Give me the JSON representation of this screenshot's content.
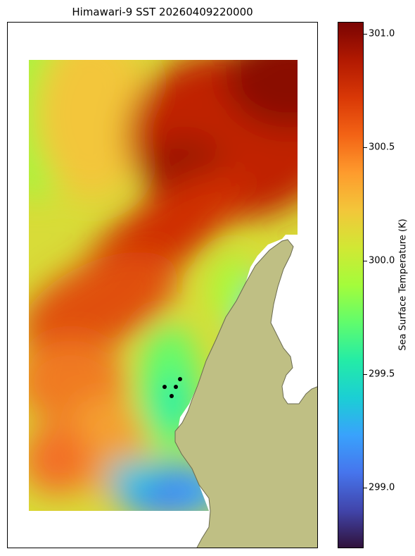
{
  "title": "Himawari-9 SST 20260409220000",
  "colorbar": {
    "label": "Sea Surface Temperature (K)",
    "ticks": [
      "299.0",
      "299.5",
      "300.0",
      "300.5",
      "301.0"
    ],
    "range": [
      298.72,
      301.05
    ],
    "colors": [
      "#30123b",
      "#4145ab",
      "#4675ed",
      "#39a2fc",
      "#1bcfd4",
      "#24eca6",
      "#61fc6c",
      "#a4fc3b",
      "#d1e834",
      "#f3c63a",
      "#fe9b2d",
      "#f36315",
      "#d93806",
      "#b11901",
      "#7a0403"
    ]
  },
  "land_color": "#bfbf84",
  "chart_data": {
    "type": "heatmap",
    "title": "Himawari-9 SST 20260409220000",
    "colorbar_label": "Sea Surface Temperature (K)",
    "value_range": [
      298.72,
      301.05
    ],
    "colorbar_ticks": [
      299.0,
      299.5,
      300.0,
      300.5,
      301.0
    ],
    "features": [
      {
        "region": "northeast offshore",
        "sst_K": 301.0
      },
      {
        "region": "central diagonal band",
        "sst_K": 300.8
      },
      {
        "region": "west coast zone",
        "sst_K": 300.2
      },
      {
        "region": "southwest eddies",
        "sst_K": 300.6
      },
      {
        "region": "nearshore channel",
        "sst_K": 299.6
      },
      {
        "region": "inner bay east",
        "sst_K": 299.1
      },
      {
        "region": "southern basin",
        "sst_K": 299.0
      }
    ],
    "markers": 4
  }
}
